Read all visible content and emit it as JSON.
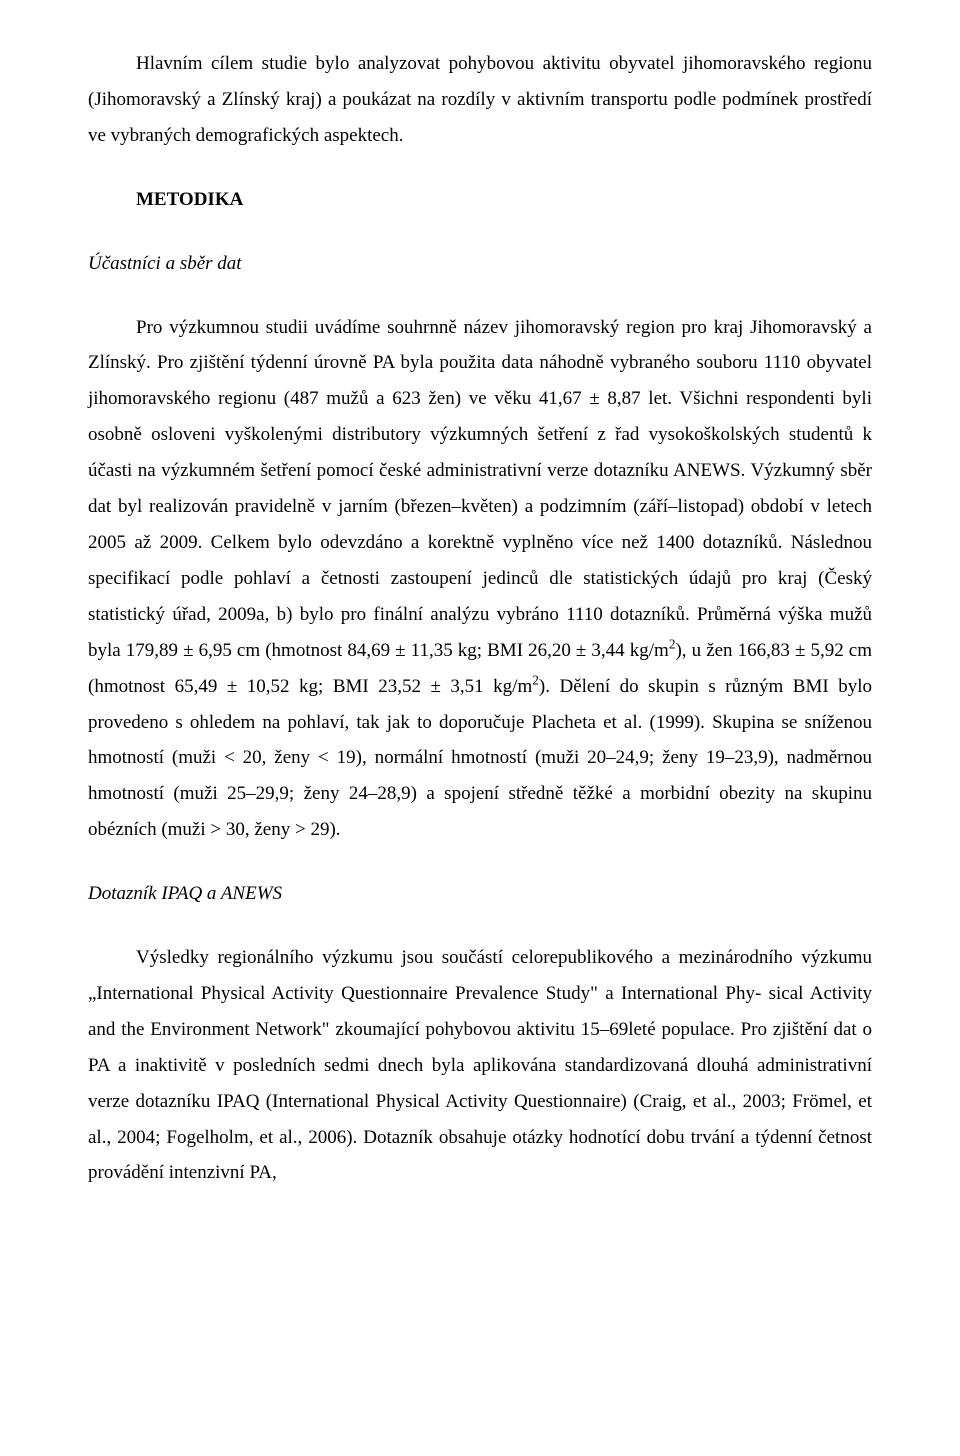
{
  "p1": "Hlavním cílem studie bylo analyzovat pohybovou aktivitu obyvatel jihomoravského regionu (Jihomoravský a Zlínský kraj) a poukázat na rozdíly v aktivním transportu podle podmínek prostředí ve vybraných demografických aspektech.",
  "h1": "METODIKA",
  "sh1": "Účastníci a sběr dat",
  "p2a": "Pro výzkumnou studii uvádíme souhrnně název jihomoravský region pro kraj Jihomoravský a Zlínský. Pro zjištění týdenní úrovně PA byla použita data náhodně vybraného souboru 1110 obyvatel jihomoravského regionu (487 mužů a 623 žen) ve věku 41,67 ± 8,87 let. Všichni respondenti byli osobně osloveni vyškolenými distributory výzkumných šetření z řad vysokoškolských studentů k účasti na výzkumném šetření pomocí české administrativní verze dotazníku ANEWS. Výzkumný sběr dat byl realizován pravidelně v jarním (březen–květen) a podzimním (září–listopad) období v letech 2005 až 2009. Celkem bylo odevzdáno a korektně vyplněno více než 1400 dotazníků. Následnou specifikací podle pohlaví a četnosti zastoupení jedinců dle statistických údajů pro kraj (Český statistický úřad, 2009a, b) bylo pro finální analýzu vybráno 1110 dotazníků. Průměrná výška mužů byla 179,89 ± 6,95 cm (hmotnost 84,69 ± 11,35 kg; BMI 26,20 ± 3,44 kg/m",
  "p2b": "), u žen 166,83 ± 5,92 cm (hmotnost 65,49 ± 10,52 kg; BMI 23,52 ± 3,51 kg/m",
  "p2c": "). Dělení do skupin s různým BMI bylo provedeno s ohledem na pohlaví, tak jak to doporučuje Placheta et al. (1999). Skupina se sníženou hmotností (muži < 20, ženy < 19), normální hmotností (muži 20–24,9; ženy 19–23,9), nadměrnou hmotností (muži 25–29,9; ženy 24–28,9) a spojení středně těžké a morbidní obezity na skupinu obézních (muži > 30, ženy > 29).",
  "sup": "2",
  "sh2": "Dotazník IPAQ a ANEWS",
  "p3": "Výsledky regionálního výzkumu jsou součástí celorepublikového a mezinárodního výzkumu „International Physical Activity Questionnaire Prevalence Study\" a International Phy- sical Activity and the Environment Network\" zkoumající pohybovou aktivitu 15–69leté populace. Pro zjištění dat o PA a inaktivitě v posledních sedmi dnech byla aplikována standardizovaná dlouhá administrativní verze dotazníku IPAQ (International Physical Activity Questionnaire) (Craig, et al., 2003; Frömel, et al., 2004; Fogelholm, et al., 2006). Dotazník obsahuje otázky hodnotící dobu trvání a týdenní četnost provádění intenzivní PA,"
}
